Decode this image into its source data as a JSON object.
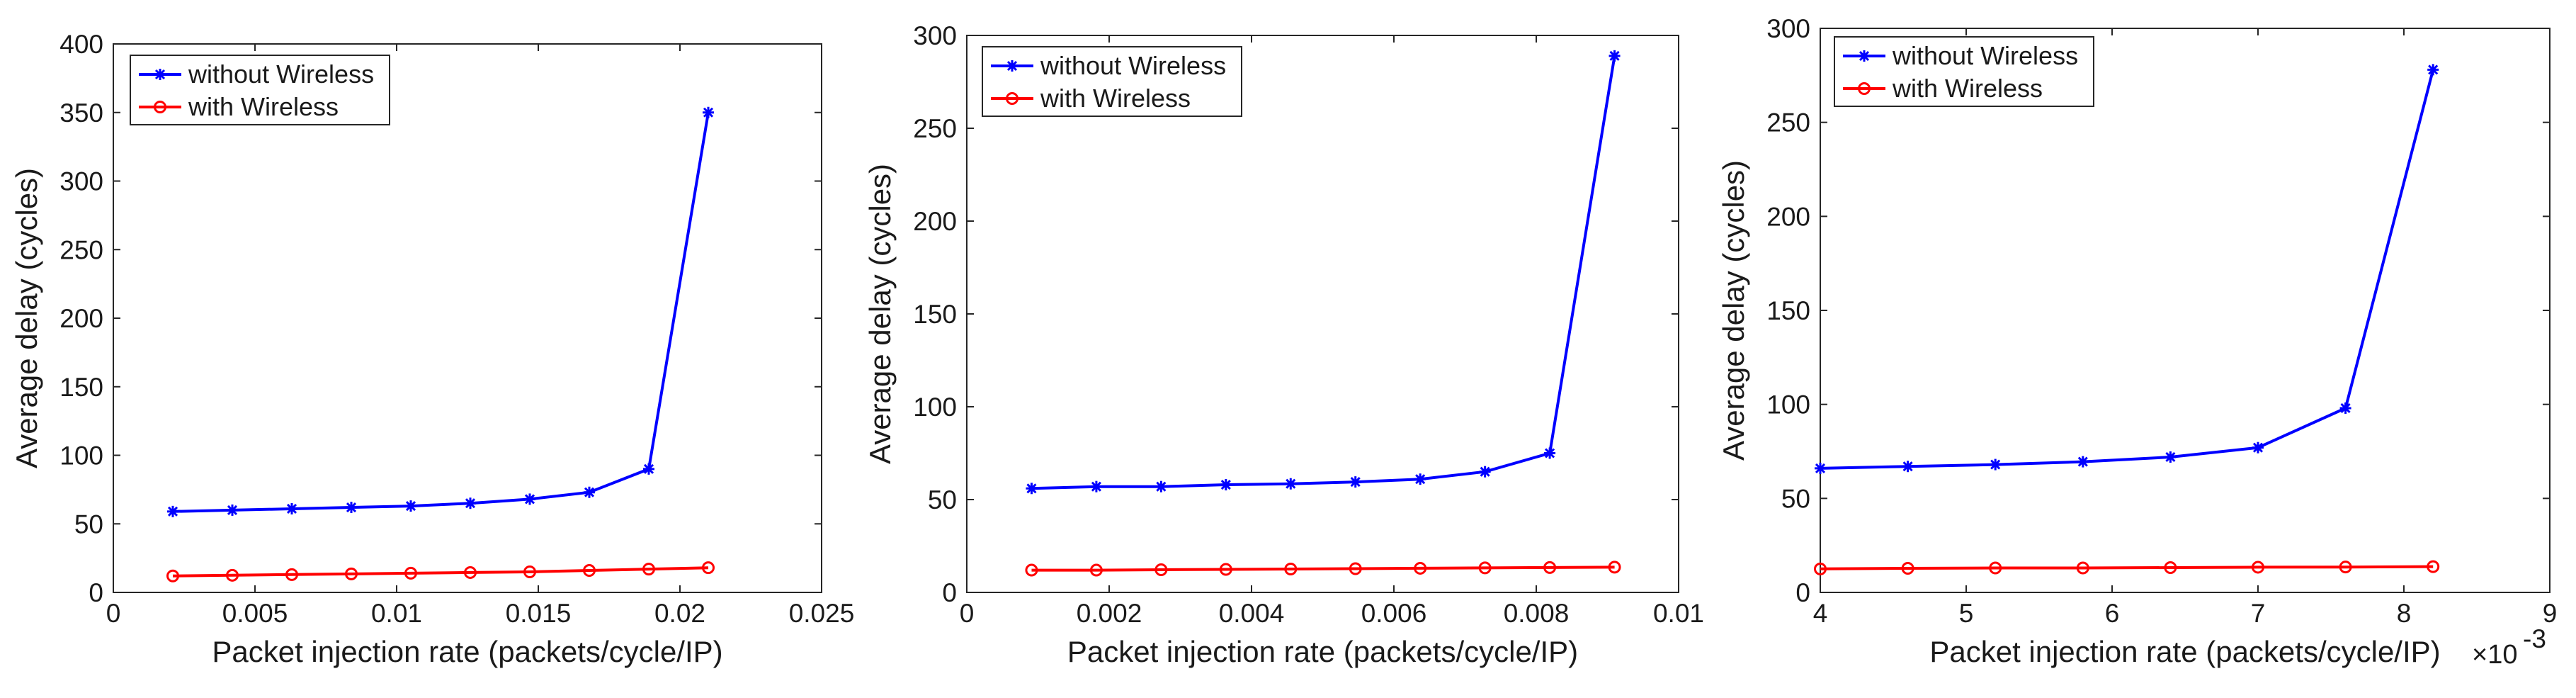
{
  "chart_data": [
    {
      "type": "line",
      "title": "",
      "xlabel": "Packet injection rate (packets/cycle/IP)",
      "ylabel": "Average delay (cycles)",
      "xlim": [
        0,
        0.025
      ],
      "ylim": [
        0,
        400
      ],
      "xticks": [
        0,
        0.005,
        0.01,
        0.015,
        0.02,
        0.025
      ],
      "xtick_labels": [
        "0",
        "0.005",
        "0.01",
        "0.015",
        "0.02",
        "0.025"
      ],
      "yticks": [
        0,
        50,
        100,
        150,
        200,
        250,
        300,
        350,
        400
      ],
      "ytick_labels": [
        "0",
        "50",
        "100",
        "150",
        "200",
        "250",
        "300",
        "350",
        "400"
      ],
      "x_exponent": "",
      "legend_position": "top-left",
      "series": [
        {
          "name": "without Wireless",
          "color": "#0000ff",
          "marker": "asterisk",
          "x": [
            0.0021,
            0.0042,
            0.0063,
            0.0084,
            0.0105,
            0.0126,
            0.0147,
            0.0168,
            0.0189,
            0.021
          ],
          "values": [
            59,
            60,
            61,
            62,
            63,
            65,
            68,
            73,
            90,
            350
          ]
        },
        {
          "name": "with Wireless",
          "color": "#ff0000",
          "marker": "circle",
          "x": [
            0.0021,
            0.0042,
            0.0063,
            0.0084,
            0.0105,
            0.0126,
            0.0147,
            0.0168,
            0.0189,
            0.021
          ],
          "values": [
            12,
            12.5,
            13,
            13.5,
            14,
            14.5,
            15,
            16,
            17,
            18
          ]
        }
      ]
    },
    {
      "type": "line",
      "title": "",
      "xlabel": "Packet injection rate (packets/cycle/IP)",
      "ylabel": "Average delay (cycles)",
      "xlim": [
        0,
        0.01
      ],
      "ylim": [
        0,
        300
      ],
      "xticks": [
        0,
        0.002,
        0.004,
        0.006,
        0.008,
        0.01
      ],
      "xtick_labels": [
        "0",
        "0.002",
        "0.004",
        "0.006",
        "0.008",
        "0.01"
      ],
      "yticks": [
        0,
        50,
        100,
        150,
        200,
        250,
        300
      ],
      "ytick_labels": [
        "0",
        "50",
        "100",
        "150",
        "200",
        "250",
        "300"
      ],
      "x_exponent": "",
      "legend_position": "top-left",
      "series": [
        {
          "name": "without Wireless",
          "color": "#0000ff",
          "marker": "asterisk",
          "x": [
            0.00091,
            0.00182,
            0.00273,
            0.00364,
            0.00455,
            0.00546,
            0.00637,
            0.00728,
            0.00819,
            0.0091
          ],
          "values": [
            56,
            57,
            57,
            58,
            58.5,
            59.5,
            61,
            65,
            75,
            289
          ]
        },
        {
          "name": "with Wireless",
          "color": "#ff0000",
          "marker": "circle",
          "x": [
            0.00091,
            0.00182,
            0.00273,
            0.00364,
            0.00455,
            0.00546,
            0.00637,
            0.00728,
            0.00819,
            0.0091
          ],
          "values": [
            12,
            12,
            12.2,
            12.4,
            12.6,
            12.8,
            13,
            13.2,
            13.4,
            13.6
          ]
        }
      ]
    },
    {
      "type": "line",
      "title": "",
      "xlabel": "Packet injection rate (packets/cycle/IP)",
      "ylabel": "Average delay (cycles)",
      "xlim": [
        4,
        9
      ],
      "ylim": [
        0,
        300
      ],
      "xticks": [
        4,
        5,
        6,
        7,
        8,
        9
      ],
      "xtick_labels": [
        "4",
        "5",
        "6",
        "7",
        "8",
        "9"
      ],
      "yticks": [
        0,
        50,
        100,
        150,
        200,
        250,
        300
      ],
      "ytick_labels": [
        "0",
        "50",
        "100",
        "150",
        "200",
        "250",
        "300"
      ],
      "x_exponent": "×10",
      "x_exponent_power": "-3",
      "legend_position": "top-left",
      "series": [
        {
          "name": "without Wireless",
          "color": "#0000ff",
          "marker": "asterisk",
          "x": [
            4.0,
            4.6,
            5.2,
            5.8,
            6.4,
            7.0,
            7.6,
            8.2
          ],
          "values": [
            66,
            67,
            68,
            69.5,
            72,
            77,
            98,
            278
          ]
        },
        {
          "name": "with Wireless",
          "color": "#ff0000",
          "marker": "circle",
          "x": [
            4.0,
            4.6,
            5.2,
            5.8,
            6.4,
            7.0,
            7.6,
            8.2
          ],
          "values": [
            12.5,
            12.8,
            13,
            13,
            13.2,
            13.4,
            13.5,
            13.7
          ]
        }
      ]
    }
  ]
}
